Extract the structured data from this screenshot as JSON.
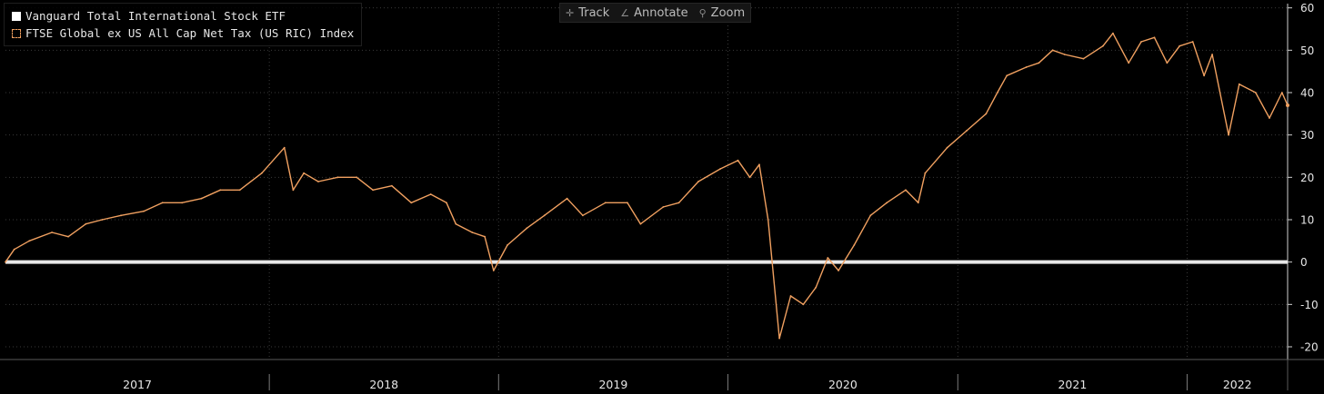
{
  "legend": {
    "etf_label": "Vanguard Total International Stock ETF",
    "index_label": "FTSE Global ex US All Cap Net Tax (US RIC) Index"
  },
  "toolbar": {
    "track": "Track",
    "annotate": "Annotate",
    "zoom": "Zoom"
  },
  "colors": {
    "background": "#000000",
    "grid": "#3a3a3a",
    "zero_line": "#e8e8e8",
    "index_line": "#f0a060",
    "etf_line": "#ffffff",
    "text": "#e6e6e6"
  },
  "chart_data": {
    "type": "line",
    "title": "",
    "xlabel": "",
    "ylabel": "",
    "ylim": [
      -23,
      61
    ],
    "y_ticks": [
      60,
      50,
      40,
      30,
      20,
      10,
      0,
      -10,
      -20
    ],
    "x_year_labels": [
      "2017",
      "2018",
      "2019",
      "2020",
      "2021",
      "2022"
    ],
    "x_range": [
      "2016-11-07",
      "2022-06-10"
    ],
    "x_year_boundaries": [
      "2018-01-01",
      "2019-01-01",
      "2020-01-01",
      "2021-01-01",
      "2022-01-01"
    ],
    "grid": true,
    "legend_position": "top-left",
    "reference_line": 0,
    "series": [
      {
        "name": "FTSE Global ex US All Cap Net Tax (US RIC) Index",
        "points": [
          [
            "2016-11-07",
            0
          ],
          [
            "2016-11-21",
            3
          ],
          [
            "2016-12-15",
            5
          ],
          [
            "2017-01-20",
            7
          ],
          [
            "2017-02-15",
            6
          ],
          [
            "2017-03-15",
            9
          ],
          [
            "2017-04-10",
            10
          ],
          [
            "2017-05-10",
            11
          ],
          [
            "2017-06-15",
            12
          ],
          [
            "2017-07-15",
            14
          ],
          [
            "2017-08-15",
            14
          ],
          [
            "2017-09-15",
            15
          ],
          [
            "2017-10-15",
            17
          ],
          [
            "2017-11-15",
            17
          ],
          [
            "2017-12-20",
            21
          ],
          [
            "2018-01-25",
            27
          ],
          [
            "2018-02-08",
            17
          ],
          [
            "2018-02-25",
            21
          ],
          [
            "2018-03-20",
            19
          ],
          [
            "2018-04-20",
            20
          ],
          [
            "2018-05-20",
            20
          ],
          [
            "2018-06-15",
            17
          ],
          [
            "2018-07-15",
            18
          ],
          [
            "2018-08-15",
            14
          ],
          [
            "2018-09-15",
            16
          ],
          [
            "2018-10-10",
            14
          ],
          [
            "2018-10-25",
            9
          ],
          [
            "2018-11-20",
            7
          ],
          [
            "2018-12-10",
            6
          ],
          [
            "2018-12-24",
            -2
          ],
          [
            "2019-01-15",
            4
          ],
          [
            "2019-02-15",
            8
          ],
          [
            "2019-03-15",
            11
          ],
          [
            "2019-04-20",
            15
          ],
          [
            "2019-05-15",
            11
          ],
          [
            "2019-06-20",
            14
          ],
          [
            "2019-07-25",
            14
          ],
          [
            "2019-08-15",
            9
          ],
          [
            "2019-09-20",
            13
          ],
          [
            "2019-10-15",
            14
          ],
          [
            "2019-11-15",
            19
          ],
          [
            "2019-12-20",
            22
          ],
          [
            "2020-01-17",
            24
          ],
          [
            "2020-02-05",
            20
          ],
          [
            "2020-02-20",
            23
          ],
          [
            "2020-03-05",
            10
          ],
          [
            "2020-03-23",
            -18
          ],
          [
            "2020-04-10",
            -8
          ],
          [
            "2020-04-30",
            -10
          ],
          [
            "2020-05-20",
            -6
          ],
          [
            "2020-06-08",
            1
          ],
          [
            "2020-06-25",
            -2
          ],
          [
            "2020-07-20",
            4
          ],
          [
            "2020-08-15",
            11
          ],
          [
            "2020-09-10",
            14
          ],
          [
            "2020-10-10",
            17
          ],
          [
            "2020-10-30",
            14
          ],
          [
            "2020-11-10",
            21
          ],
          [
            "2020-12-15",
            27
          ],
          [
            "2021-01-15",
            31
          ],
          [
            "2021-02-15",
            35
          ],
          [
            "2021-03-05",
            40
          ],
          [
            "2021-03-20",
            44
          ],
          [
            "2021-04-20",
            46
          ],
          [
            "2021-05-10",
            47
          ],
          [
            "2021-06-01",
            50
          ],
          [
            "2021-06-20",
            49
          ],
          [
            "2021-07-20",
            48
          ],
          [
            "2021-08-20",
            51
          ],
          [
            "2021-09-05",
            54
          ],
          [
            "2021-09-30",
            47
          ],
          [
            "2021-10-20",
            52
          ],
          [
            "2021-11-10",
            53
          ],
          [
            "2021-11-30",
            47
          ],
          [
            "2021-12-20",
            51
          ],
          [
            "2022-01-10",
            52
          ],
          [
            "2022-01-28",
            44
          ],
          [
            "2022-02-10",
            49
          ],
          [
            "2022-03-08",
            30
          ],
          [
            "2022-03-25",
            42
          ],
          [
            "2022-04-20",
            40
          ],
          [
            "2022-05-12",
            34
          ],
          [
            "2022-06-01",
            40
          ],
          [
            "2022-06-10",
            37
          ]
        ]
      },
      {
        "name": "Vanguard Total International Stock ETF",
        "points": []
      }
    ]
  }
}
